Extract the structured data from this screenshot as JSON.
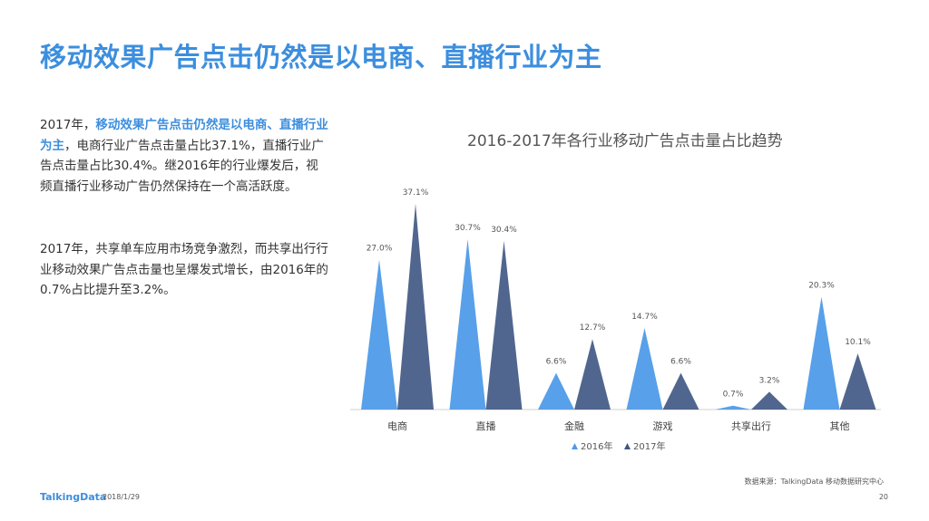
{
  "title": "移动效果广告点击仍然是以电商、直播行业为主",
  "text": {
    "p1_a": "2017年，",
    "p1_hl": "移动效果广告点击仍然是以电商、直播行业为主",
    "p1_b": "，电商行业广告点击量占比37.1%，直播行业广告点击量占比30.4%。继2016年的行业爆发后，视频直播行业移动广告仍然保持在一个高活跃度。",
    "p2": "2017年，共享单车应用市场竞争激烈，而共享出行行业移动效果广告点击量也呈爆发式增长，由2016年的0.7%占比提升至3.2%。"
  },
  "footer": {
    "logo": "TalkingData",
    "date": "2018/1/29",
    "source": "数据来源：TalkingData 移动数据研究中心",
    "page": "20"
  },
  "colors": {
    "title": "#3c8ede",
    "s2016": "#4f9be8",
    "s2017": "#3e5582"
  },
  "chart_data": {
    "type": "area",
    "title": "2016-2017年各行业移动广告点击量占比趋势",
    "categories": [
      "电商",
      "直播",
      "金融",
      "游戏",
      "共享出行",
      "其他"
    ],
    "series": [
      {
        "name": "2016年",
        "values": [
          27.0,
          30.7,
          6.6,
          14.7,
          0.7,
          20.3
        ],
        "labels": [
          "27.0%",
          "30.7%",
          "6.6%",
          "14.7%",
          "0.7%",
          "20.3%"
        ]
      },
      {
        "name": "2017年",
        "values": [
          37.1,
          30.4,
          12.7,
          6.6,
          3.2,
          10.1
        ],
        "labels": [
          "37.1%",
          "30.4%",
          "12.7%",
          "6.6%",
          "3.2%",
          "10.1%"
        ]
      }
    ],
    "ylim": [
      0,
      40
    ],
    "grid": false,
    "legend": "bottom"
  }
}
